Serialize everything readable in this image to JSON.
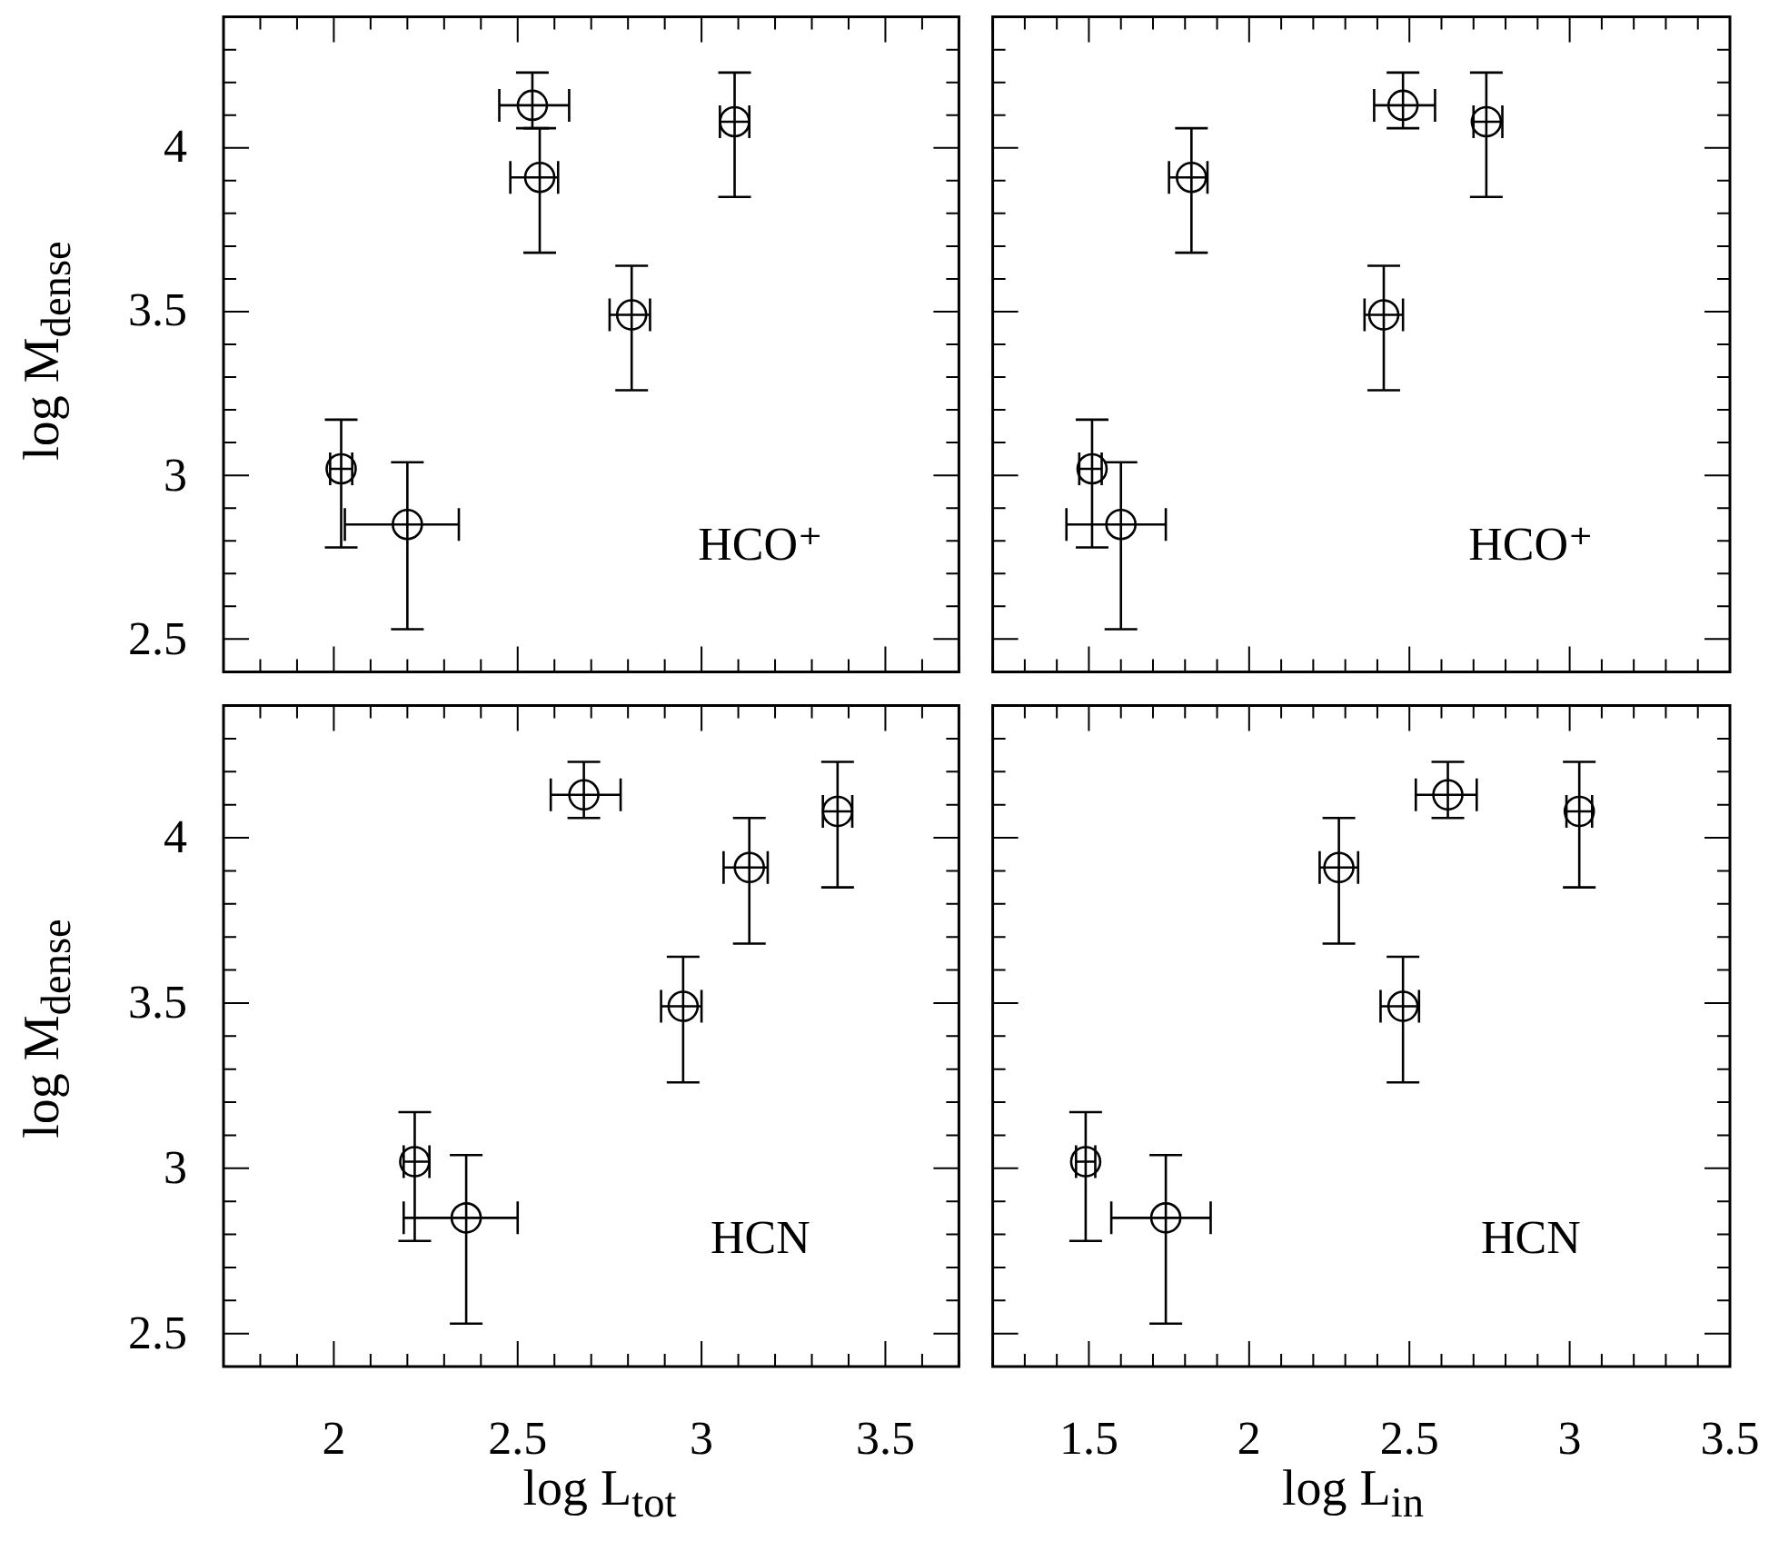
{
  "chart_data": [
    {
      "type": "scatter",
      "ylabel": "log M$_{dense}$",
      "annotations": [
        "HCO⁺"
      ],
      "tick_labels": "y",
      "color": "#000000",
      "marker": "circle",
      "x": [
        2.02,
        2.2,
        2.54,
        2.56,
        2.81,
        3.09
      ],
      "values": [
        3.02,
        2.85,
        4.13,
        3.91,
        3.49,
        4.08
      ],
      "errors": [
        [
          2.78,
          3.17
        ],
        [
          2.53,
          3.04
        ],
        [
          4.06,
          4.23
        ],
        [
          3.68,
          4.06
        ],
        [
          3.26,
          3.64
        ],
        [
          3.85,
          4.23
        ]
      ],
      "xerrors": [
        [
          1.99,
          2.05
        ],
        [
          2.03,
          2.34
        ],
        [
          2.45,
          2.64
        ],
        [
          2.48,
          2.61
        ],
        [
          2.75,
          2.86
        ],
        [
          3.05,
          3.13
        ]
      ],
      "xlim": [
        1.7,
        3.7
      ],
      "ylim": [
        2.4,
        4.4
      ],
      "xticks": [
        {
          "value": 1.7,
          "label": null
        },
        {
          "value": 1.8,
          "label": null
        },
        {
          "value": 1.9,
          "label": null
        },
        2,
        {
          "value": 2.1,
          "label": null
        },
        {
          "value": 2.2,
          "label": null
        },
        {
          "value": 2.3,
          "label": null
        },
        {
          "value": 2.4,
          "label": null
        },
        2.5,
        {
          "value": 2.6,
          "label": null
        },
        {
          "value": 2.7,
          "label": null
        },
        {
          "value": 2.8,
          "label": null
        },
        {
          "value": 2.9,
          "label": null
        },
        3,
        {
          "value": 3.1,
          "label": null
        },
        {
          "value": 3.2,
          "label": null
        },
        {
          "value": 3.3,
          "label": null
        },
        {
          "value": 3.4,
          "label": null
        },
        3.5,
        {
          "value": 3.6,
          "label": null
        },
        {
          "value": 3.7,
          "label": null
        }
      ],
      "yticks": [
        {
          "value": 2.4,
          "label": null
        },
        2.5,
        {
          "value": 2.6,
          "label": null
        },
        {
          "value": 2.7,
          "label": null
        },
        {
          "value": 2.8,
          "label": null
        },
        {
          "value": 2.9,
          "label": null
        },
        3,
        {
          "value": 3.1,
          "label": null
        },
        {
          "value": 3.2,
          "label": null
        },
        {
          "value": 3.3,
          "label": null
        },
        {
          "value": 3.4,
          "label": null
        },
        3.5,
        {
          "value": 3.6,
          "label": null
        },
        {
          "value": 3.7,
          "label": null
        },
        {
          "value": 3.8,
          "label": null
        },
        {
          "value": 3.9,
          "label": null
        },
        4,
        {
          "value": 4.1,
          "label": null
        },
        {
          "value": 4.2,
          "label": null
        },
        {
          "value": 4.3,
          "label": null
        },
        {
          "value": 4.4,
          "label": null
        }
      ]
    },
    {
      "type": "scatter",
      "annotations": [
        "HCO⁺"
      ],
      "tick_labels": false,
      "color": "#000000",
      "marker": "circle",
      "x": [
        1.51,
        1.6,
        2.48,
        1.82,
        2.42,
        2.74
      ],
      "values": [
        3.02,
        2.85,
        4.13,
        3.91,
        3.49,
        4.08
      ],
      "errors": [
        [
          2.78,
          3.17
        ],
        [
          2.53,
          3.04
        ],
        [
          4.06,
          4.23
        ],
        [
          3.68,
          4.06
        ],
        [
          3.26,
          3.64
        ],
        [
          3.85,
          4.23
        ]
      ],
      "xerrors": [
        [
          1.47,
          1.54
        ],
        [
          1.43,
          1.74
        ],
        [
          2.39,
          2.58
        ],
        [
          1.75,
          1.87
        ],
        [
          2.36,
          2.48
        ],
        [
          2.7,
          2.79
        ]
      ],
      "xlim": [
        1.2,
        3.5
      ],
      "ylim": [
        2.4,
        4.4
      ],
      "xticks": [
        {
          "value": 1.2,
          "label": null
        },
        {
          "value": 1.3,
          "label": null
        },
        {
          "value": 1.4,
          "label": null
        },
        1.5,
        {
          "value": 1.6,
          "label": null
        },
        {
          "value": 1.7,
          "label": null
        },
        {
          "value": 1.8,
          "label": null
        },
        {
          "value": 1.9,
          "label": null
        },
        2,
        {
          "value": 2.1,
          "label": null
        },
        {
          "value": 2.2,
          "label": null
        },
        {
          "value": 2.3,
          "label": null
        },
        {
          "value": 2.4,
          "label": null
        },
        2.5,
        {
          "value": 2.6,
          "label": null
        },
        {
          "value": 2.7,
          "label": null
        },
        {
          "value": 2.8,
          "label": null
        },
        {
          "value": 2.9,
          "label": null
        },
        3,
        {
          "value": 3.1,
          "label": null
        },
        {
          "value": 3.2,
          "label": null
        },
        {
          "value": 3.3,
          "label": null
        },
        {
          "value": 3.4,
          "label": null
        },
        3.5
      ],
      "yticks": [
        {
          "value": 2.4,
          "label": null
        },
        2.5,
        {
          "value": 2.6,
          "label": null
        },
        {
          "value": 2.7,
          "label": null
        },
        {
          "value": 2.8,
          "label": null
        },
        {
          "value": 2.9,
          "label": null
        },
        3,
        {
          "value": 3.1,
          "label": null
        },
        {
          "value": 3.2,
          "label": null
        },
        {
          "value": 3.3,
          "label": null
        },
        {
          "value": 3.4,
          "label": null
        },
        3.5,
        {
          "value": 3.6,
          "label": null
        },
        {
          "value": 3.7,
          "label": null
        },
        {
          "value": 3.8,
          "label": null
        },
        {
          "value": 3.9,
          "label": null
        },
        4,
        {
          "value": 4.1,
          "label": null
        },
        {
          "value": 4.2,
          "label": null
        },
        {
          "value": 4.3,
          "label": null
        },
        {
          "value": 4.4,
          "label": null
        }
      ]
    },
    {
      "type": "scatter",
      "xlabel": "log L$_{tot}$",
      "ylabel": "log M$_{dense}$",
      "annotations": [
        "HCN"
      ],
      "color": "#000000",
      "marker": "circle",
      "x": [
        2.22,
        2.36,
        2.68,
        3.13,
        2.95,
        3.37
      ],
      "values": [
        3.02,
        2.85,
        4.13,
        3.91,
        3.49,
        4.08
      ],
      "errors": [
        [
          2.78,
          3.17
        ],
        [
          2.53,
          3.04
        ],
        [
          4.06,
          4.23
        ],
        [
          3.68,
          4.06
        ],
        [
          3.26,
          3.64
        ],
        [
          3.85,
          4.23
        ]
      ],
      "xerrors": [
        [
          2.19,
          2.26
        ],
        [
          2.19,
          2.5
        ],
        [
          2.59,
          2.78
        ],
        [
          3.06,
          3.18
        ],
        [
          2.89,
          3.0
        ],
        [
          3.33,
          3.41
        ]
      ],
      "xlim": [
        1.7,
        3.7
      ],
      "ylim": [
        2.4,
        4.4
      ],
      "xticks": [
        {
          "value": 1.7,
          "label": null
        },
        {
          "value": 1.8,
          "label": null
        },
        {
          "value": 1.9,
          "label": null
        },
        2,
        {
          "value": 2.1,
          "label": null
        },
        {
          "value": 2.2,
          "label": null
        },
        {
          "value": 2.3,
          "label": null
        },
        {
          "value": 2.4,
          "label": null
        },
        2.5,
        {
          "value": 2.6,
          "label": null
        },
        {
          "value": 2.7,
          "label": null
        },
        {
          "value": 2.8,
          "label": null
        },
        {
          "value": 2.9,
          "label": null
        },
        3,
        {
          "value": 3.1,
          "label": null
        },
        {
          "value": 3.2,
          "label": null
        },
        {
          "value": 3.3,
          "label": null
        },
        {
          "value": 3.4,
          "label": null
        },
        3.5,
        {
          "value": 3.6,
          "label": null
        },
        {
          "value": 3.7,
          "label": null
        }
      ],
      "yticks": [
        {
          "value": 2.4,
          "label": null
        },
        2.5,
        {
          "value": 2.6,
          "label": null
        },
        {
          "value": 2.7,
          "label": null
        },
        {
          "value": 2.8,
          "label": null
        },
        {
          "value": 2.9,
          "label": null
        },
        3,
        {
          "value": 3.1,
          "label": null
        },
        {
          "value": 3.2,
          "label": null
        },
        {
          "value": 3.3,
          "label": null
        },
        {
          "value": 3.4,
          "label": null
        },
        3.5,
        {
          "value": 3.6,
          "label": null
        },
        {
          "value": 3.7,
          "label": null
        },
        {
          "value": 3.8,
          "label": null
        },
        {
          "value": 3.9,
          "label": null
        },
        4,
        {
          "value": 4.1,
          "label": null
        },
        {
          "value": 4.2,
          "label": null
        },
        {
          "value": 4.3,
          "label": null
        },
        {
          "value": 4.4,
          "label": null
        }
      ]
    },
    {
      "type": "scatter",
      "xlabel": "log L$_{in}$",
      "annotations": [
        "HCN"
      ],
      "tick_labels": "x",
      "color": "#000000",
      "marker": "circle",
      "x": [
        1.49,
        1.74,
        2.62,
        2.28,
        2.48,
        3.03
      ],
      "values": [
        3.02,
        2.85,
        4.13,
        3.91,
        3.49,
        4.08
      ],
      "errors": [
        [
          2.78,
          3.17
        ],
        [
          2.53,
          3.04
        ],
        [
          4.06,
          4.23
        ],
        [
          3.68,
          4.06
        ],
        [
          3.26,
          3.64
        ],
        [
          3.85,
          4.23
        ]
      ],
      "xerrors": [
        [
          1.46,
          1.52
        ],
        [
          1.57,
          1.88
        ],
        [
          2.52,
          2.71
        ],
        [
          2.22,
          2.34
        ],
        [
          2.41,
          2.53
        ],
        [
          2.99,
          3.07
        ]
      ],
      "xlim": [
        1.2,
        3.5
      ],
      "ylim": [
        2.4,
        4.4
      ],
      "xticks": [
        {
          "value": 1.2,
          "label": null
        },
        {
          "value": 1.3,
          "label": null
        },
        {
          "value": 1.4,
          "label": null
        },
        1.5,
        {
          "value": 1.6,
          "label": null
        },
        {
          "value": 1.7,
          "label": null
        },
        {
          "value": 1.8,
          "label": null
        },
        {
          "value": 1.9,
          "label": null
        },
        2,
        {
          "value": 2.1,
          "label": null
        },
        {
          "value": 2.2,
          "label": null
        },
        {
          "value": 2.3,
          "label": null
        },
        {
          "value": 2.4,
          "label": null
        },
        2.5,
        {
          "value": 2.6,
          "label": null
        },
        {
          "value": 2.7,
          "label": null
        },
        {
          "value": 2.8,
          "label": null
        },
        {
          "value": 2.9,
          "label": null
        },
        3,
        {
          "value": 3.1,
          "label": null
        },
        {
          "value": 3.2,
          "label": null
        },
        {
          "value": 3.3,
          "label": null
        },
        {
          "value": 3.4,
          "label": null
        },
        3.5
      ],
      "yticks": [
        {
          "value": 2.4,
          "label": null
        },
        2.5,
        {
          "value": 2.6,
          "label": null
        },
        {
          "value": 2.7,
          "label": null
        },
        {
          "value": 2.8,
          "label": null
        },
        {
          "value": 2.9,
          "label": null
        },
        3,
        {
          "value": 3.1,
          "label": null
        },
        {
          "value": 3.2,
          "label": null
        },
        {
          "value": 3.3,
          "label": null
        },
        {
          "value": 3.4,
          "label": null
        },
        3.5,
        {
          "value": 3.6,
          "label": null
        },
        {
          "value": 3.7,
          "label": null
        },
        {
          "value": 3.8,
          "label": null
        },
        {
          "value": 3.9,
          "label": null
        },
        4,
        {
          "value": 4.1,
          "label": null
        },
        {
          "value": 4.2,
          "label": null
        },
        {
          "value": 4.3,
          "label": null
        },
        {
          "value": 4.4,
          "label": null
        }
      ]
    }
  ]
}
